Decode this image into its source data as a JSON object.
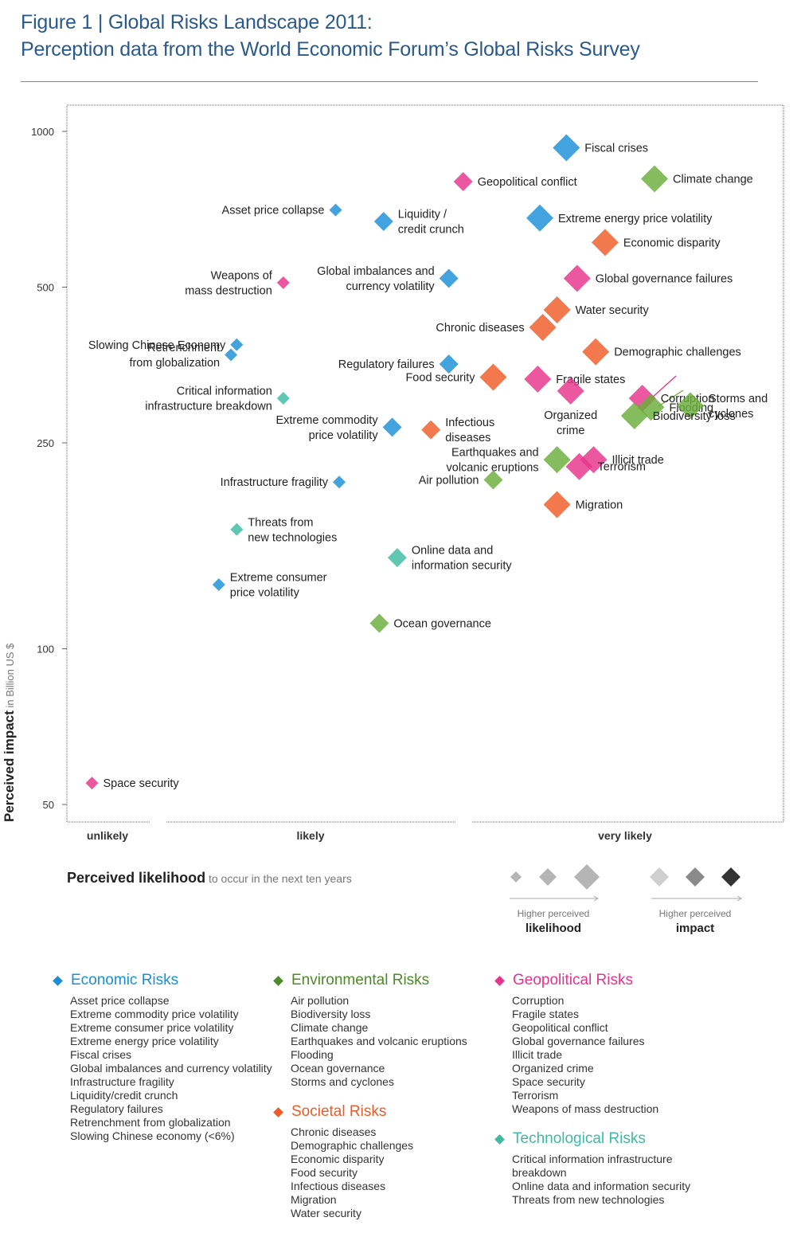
{
  "figure": {
    "title_line1": "Figure 1 | Global Risks Landscape 2011:",
    "title_line2": "Perception data from the World Economic Forum’s Global Risks Survey"
  },
  "axes": {
    "y_label_bold": "Perceived impact",
    "y_label_rest": " in Billion US $",
    "x_label_bold": "Perceived likelihood",
    "x_label_rest": " to occur in the next ten years"
  },
  "size_key": {
    "likelihood_caption": "Higher perceived",
    "likelihood_word": "likelihood",
    "impact_caption": "Higher perceived",
    "impact_word": "impact"
  },
  "colors": {
    "economic": "#1a8fd8",
    "environmental": "#6aae3a",
    "geopolitical": "#e7338a",
    "societal": "#ef5a27",
    "technological": "#3dbba2"
  },
  "legend": [
    {
      "name": "Economic Risks",
      "category": "economic",
      "color": "#1a8fd8",
      "items": [
        "Asset price collapse",
        "Extreme commodity price volatility",
        "Extreme consumer price volatility",
        "Extreme energy price volatility",
        "Fiscal crises",
        "Global imbalances and currency volatility",
        "Infrastructure fragility",
        "Liquidity/credit crunch",
        "Regulatory failures",
        "Retrenchment from globalization",
        "Slowing Chinese economy (<6%)"
      ]
    },
    {
      "name": "Environmental Risks",
      "category": "environmental",
      "color": "#4e8a2a",
      "items": [
        "Air pollution",
        "Biodiversity loss",
        "Climate change",
        "Earthquakes and volcanic eruptions",
        "Flooding",
        "Ocean governance",
        "Storms and cyclones"
      ]
    },
    {
      "name": "Societal Risks",
      "category": "societal",
      "color": "#ef5a27",
      "items": [
        "Chronic diseases",
        "Demographic challenges",
        "Economic disparity",
        "Food security",
        "Infectious diseases",
        "Migration",
        "Water security"
      ]
    },
    {
      "name": "Geopolitical Risks",
      "category": "geopolitical",
      "color": "#e7338a",
      "items": [
        "Corruption",
        "Fragile states",
        "Geopolitical conflict",
        "Global governance failures",
        "Illicit trade",
        "Organized crime",
        "Space security",
        "Terrorism",
        "Weapons of mass destruction"
      ]
    },
    {
      "name": "Technological Risks",
      "category": "technological",
      "color": "#3dbba2",
      "items": [
        "Critical information infrastructure",
        "breakdown",
        "Online data and information security",
        "Threats from new technologies"
      ]
    }
  ],
  "chart_data": {
    "type": "scatter",
    "title": "Global Risks Landscape 2011",
    "xlabel": "Perceived likelihood",
    "ylabel": "Perceived impact in Billion US $",
    "x_categories": [
      "unlikely",
      "likely",
      "very likely"
    ],
    "x_scale": "likelihood (0 = unlikely, 1 = very likely)",
    "xlim": [
      0,
      1
    ],
    "y_scale": "log",
    "yticks": [
      50,
      100,
      250,
      500,
      1000
    ],
    "ylim": [
      45,
      1150
    ],
    "grid": false,
    "points": [
      {
        "name": "Fiscal crises",
        "category": "economic",
        "x": 0.697,
        "y": 930,
        "size": 3,
        "label_lines": [
          "Fiscal crises"
        ],
        "label_anchor": "start"
      },
      {
        "name": "Geopolitical conflict",
        "category": "geopolitical",
        "x": 0.553,
        "y": 800,
        "size": 2,
        "label_lines": [
          "Geopolitical conflict"
        ],
        "label_anchor": "start"
      },
      {
        "name": "Climate change",
        "category": "environmental",
        "x": 0.82,
        "y": 810,
        "size": 3,
        "label_lines": [
          "Climate change"
        ],
        "label_anchor": "start"
      },
      {
        "name": "Asset price collapse",
        "category": "economic",
        "x": 0.375,
        "y": 705,
        "size": 1,
        "label_lines": [
          "Asset price collapse"
        ],
        "label_anchor": "end"
      },
      {
        "name": "Liquidity / credit crunch",
        "category": "economic",
        "x": 0.442,
        "y": 670,
        "size": 2,
        "label_lines": [
          "Liquidity /",
          "credit crunch"
        ],
        "label_anchor": "start"
      },
      {
        "name": "Extreme energy price volatility",
        "category": "economic",
        "x": 0.66,
        "y": 680,
        "size": 3,
        "label_lines": [
          "Extreme energy price volatility"
        ],
        "label_anchor": "start"
      },
      {
        "name": "Economic disparity",
        "category": "societal",
        "x": 0.751,
        "y": 610,
        "size": 3,
        "label_lines": [
          "Economic disparity"
        ],
        "label_anchor": "start"
      },
      {
        "name": "Weapons of mass destruction",
        "category": "geopolitical",
        "x": 0.302,
        "y": 510,
        "size": 1,
        "label_lines": [
          "Weapons of",
          "mass destruction"
        ],
        "label_anchor": "end"
      },
      {
        "name": "Global imbalances and currency volatility",
        "category": "economic",
        "x": 0.533,
        "y": 520,
        "size": 2,
        "label_lines": [
          "Global imbalances and",
          "currency volatility"
        ],
        "label_anchor": "end"
      },
      {
        "name": "Global governance failures",
        "category": "geopolitical",
        "x": 0.712,
        "y": 520,
        "size": 3,
        "label_lines": [
          "Global governance failures"
        ],
        "label_anchor": "start"
      },
      {
        "name": "Water security",
        "category": "societal",
        "x": 0.684,
        "y": 452,
        "size": 3,
        "label_lines": [
          "Water security"
        ],
        "label_anchor": "start"
      },
      {
        "name": "Chronic diseases",
        "category": "societal",
        "x": 0.664,
        "y": 418,
        "size": 3,
        "label_lines": [
          "Chronic diseases"
        ],
        "label_anchor": "end"
      },
      {
        "name": "Slowing Chinese Economy",
        "category": "economic",
        "x": 0.237,
        "y": 387,
        "size": 1,
        "label_lines": [
          "Slowing Chinese Economy"
        ],
        "label_anchor": "end"
      },
      {
        "name": "Retrenchment from globalization",
        "category": "economic",
        "x": 0.229,
        "y": 370,
        "size": 1,
        "label_lines": [
          "Retrenchment",
          "from globalization"
        ],
        "label_anchor": "end"
      },
      {
        "name": "Demographic challenges",
        "category": "societal",
        "x": 0.738,
        "y": 375,
        "size": 3,
        "label_lines": [
          "Demographic challenges"
        ],
        "label_anchor": "start"
      },
      {
        "name": "Regulatory failures",
        "category": "economic",
        "x": 0.533,
        "y": 355,
        "size": 2,
        "label_lines": [
          "Regulatory failures"
        ],
        "label_anchor": "end"
      },
      {
        "name": "Food security",
        "category": "societal",
        "x": 0.595,
        "y": 335,
        "size": 3,
        "label_lines": [
          "Food security"
        ],
        "label_anchor": "end"
      },
      {
        "name": "Fragile states",
        "category": "geopolitical",
        "x": 0.657,
        "y": 332,
        "size": 3,
        "label_lines": [
          "Fragile states"
        ],
        "label_anchor": "start"
      },
      {
        "name": "Organized crime",
        "category": "geopolitical",
        "x": 0.703,
        "y": 315,
        "size": 3,
        "label_lines": [
          "Organized",
          "crime"
        ],
        "label_anchor": "middle"
      },
      {
        "name": "Critical information infrastructure breakdown",
        "category": "technological",
        "x": 0.302,
        "y": 305,
        "size": 1,
        "label_lines": [
          "Critical information",
          "infrastructure breakdown"
        ],
        "label_anchor": "end"
      },
      {
        "name": "Corruption",
        "category": "geopolitical",
        "x": 0.803,
        "y": 305,
        "size": 3,
        "label_lines": [
          "Corruption"
        ],
        "label_anchor": "start"
      },
      {
        "name": "Flooding",
        "category": "environmental",
        "x": 0.815,
        "y": 293,
        "size": 3,
        "label_lines": [
          "Flooding"
        ],
        "label_anchor": "start"
      },
      {
        "name": "Storms and cyclones",
        "category": "environmental",
        "x": 0.87,
        "y": 295,
        "size": 3,
        "label_lines": [
          "Storms and",
          "cyclones"
        ],
        "label_anchor": "start"
      },
      {
        "name": "Biodiversity loss",
        "category": "environmental",
        "x": 0.792,
        "y": 282,
        "size": 3,
        "label_lines": [
          "Biodiversity loss"
        ],
        "label_anchor": "start"
      },
      {
        "name": "Extreme commodity price volatility",
        "category": "economic",
        "x": 0.454,
        "y": 268,
        "size": 2,
        "label_lines": [
          "Extreme commodity",
          "price volatility"
        ],
        "label_anchor": "end"
      },
      {
        "name": "Infectious diseases",
        "category": "societal",
        "x": 0.508,
        "y": 265,
        "size": 2,
        "label_lines": [
          "Infectious",
          "diseases"
        ],
        "label_anchor": "start"
      },
      {
        "name": "Earthquakes and volcanic eruptions",
        "category": "environmental",
        "x": 0.684,
        "y": 232,
        "size": 3,
        "label_lines": [
          "Earthquakes and",
          "volcanic eruptions"
        ],
        "label_anchor": "end"
      },
      {
        "name": "Illicit trade",
        "category": "geopolitical",
        "x": 0.735,
        "y": 232,
        "size": 3,
        "label_lines": [
          "Illicit trade"
        ],
        "label_anchor": "start"
      },
      {
        "name": "Terrorism",
        "category": "geopolitical",
        "x": 0.715,
        "y": 225,
        "size": 3,
        "label_lines": [
          "Terrorism"
        ],
        "label_anchor": "start"
      },
      {
        "name": "Infrastructure fragility",
        "category": "economic",
        "x": 0.38,
        "y": 210,
        "size": 1,
        "label_lines": [
          "Infrastructure fragility"
        ],
        "label_anchor": "end"
      },
      {
        "name": "Air pollution",
        "category": "environmental",
        "x": 0.595,
        "y": 212,
        "size": 2,
        "label_lines": [
          "Air pollution"
        ],
        "label_anchor": "end"
      },
      {
        "name": "Migration",
        "category": "societal",
        "x": 0.684,
        "y": 190,
        "size": 3,
        "label_lines": [
          "Migration"
        ],
        "label_anchor": "start"
      },
      {
        "name": "Threats from new technologies",
        "category": "technological",
        "x": 0.237,
        "y": 170,
        "size": 1,
        "label_lines": [
          "Threats from",
          "new technologies"
        ],
        "label_anchor": "start"
      },
      {
        "name": "Online data and information security",
        "category": "technological",
        "x": 0.461,
        "y": 150,
        "size": 2,
        "label_lines": [
          "Online data and",
          "information security"
        ],
        "label_anchor": "start"
      },
      {
        "name": "Extreme consumer price volatility",
        "category": "economic",
        "x": 0.212,
        "y": 133,
        "size": 1,
        "label_lines": [
          "Extreme consumer",
          "price volatility"
        ],
        "label_anchor": "start"
      },
      {
        "name": "Ocean governance",
        "category": "environmental",
        "x": 0.436,
        "y": 112,
        "size": 2,
        "label_lines": [
          "Ocean governance"
        ],
        "label_anchor": "start"
      },
      {
        "name": "Space security",
        "category": "geopolitical",
        "x": 0.035,
        "y": 55,
        "size": 1,
        "label_lines": [
          "Space security"
        ],
        "label_anchor": "start"
      }
    ]
  }
}
